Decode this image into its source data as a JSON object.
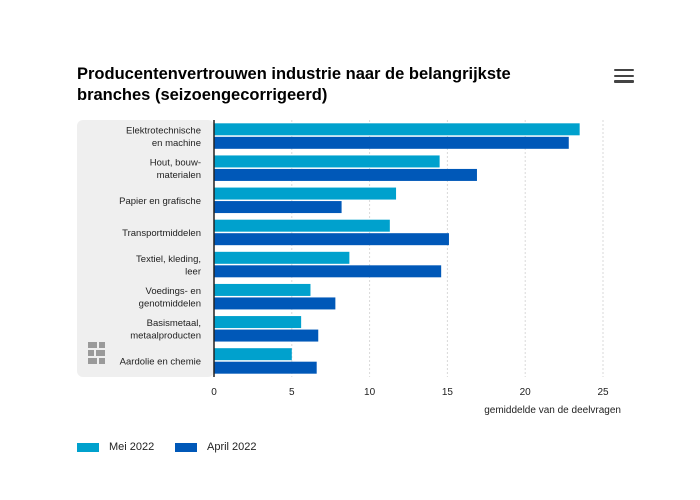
{
  "title": "Producentenvertrouwen industrie naar de belangrijkste branches (seizoengecorrigeerd)",
  "menu_icon": "hamburger-menu-icon",
  "logo_icon": "cbs-logo-icon",
  "colors": {
    "mei": "#00a1cd",
    "april": "#0058b8",
    "panel": "#efefef",
    "grid": "#d9d9d9",
    "axis": "#222222"
  },
  "chart_data": {
    "type": "bar",
    "orientation": "horizontal",
    "categories": [
      [
        "Elektrotechnische",
        "en machine"
      ],
      [
        "Hout, bouw-",
        "materialen"
      ],
      [
        "Papier en grafische"
      ],
      [
        "Transportmiddelen"
      ],
      [
        "Textiel, kleding,",
        "leer"
      ],
      [
        "Voedings- en",
        "genotmiddelen"
      ],
      [
        "Basismetaal,",
        "metaalproducten"
      ],
      [
        "Aardolie en chemie"
      ]
    ],
    "series": [
      {
        "name": "Mei 2022",
        "color": "#00a1cd",
        "values": [
          23.5,
          14.5,
          11.7,
          11.3,
          8.7,
          6.2,
          5.6,
          5.0
        ]
      },
      {
        "name": "April 2022",
        "color": "#0058b8",
        "values": [
          22.8,
          16.9,
          8.2,
          15.1,
          14.6,
          7.8,
          6.7,
          6.6
        ]
      }
    ],
    "xlabel": "gemiddelde van de deelvragen",
    "xlim": [
      0,
      25
    ],
    "xticks": [
      "0",
      "5",
      "10",
      "15",
      "20",
      "25"
    ],
    "grid": true,
    "legend": "bottom-left"
  }
}
